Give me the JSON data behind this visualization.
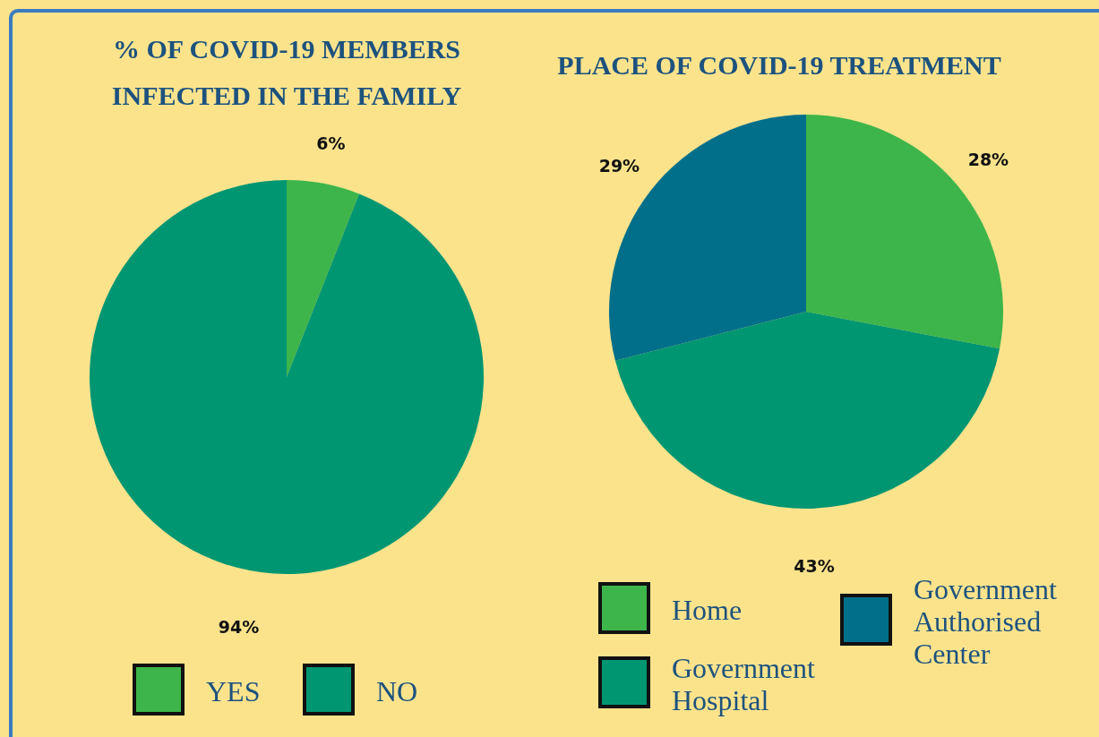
{
  "chart_data": [
    {
      "type": "pie",
      "title": "% OF COVID-19 MEMBERS INFECTED IN THE FAMILY",
      "categories": [
        "YES",
        "NO"
      ],
      "values": [
        6,
        94
      ],
      "colors": [
        "#3db54a",
        "#009672"
      ],
      "value_labels": [
        "6%",
        "94%"
      ],
      "legend": "bottom"
    },
    {
      "type": "pie",
      "title": "PLACE OF COVID-19 TREATMENT",
      "categories": [
        "Home",
        "Government Hospital",
        "Government Authorised Center"
      ],
      "values": [
        28,
        43,
        29
      ],
      "colors": [
        "#3db54a",
        "#009672",
        "#026f8a"
      ],
      "value_labels": [
        "28%",
        "43%",
        "29%"
      ],
      "legend": "bottom"
    }
  ]
}
